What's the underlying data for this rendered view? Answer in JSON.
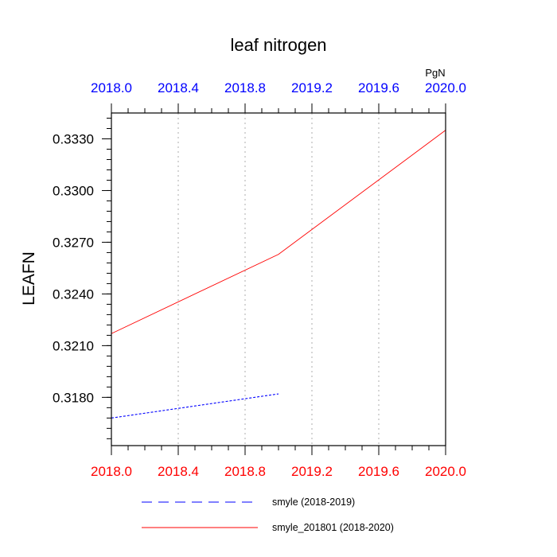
{
  "chart_data": {
    "type": "line",
    "title": "leaf nitrogen",
    "ylabel": "LEAFN",
    "units": "PgN",
    "xlim": [
      2018.0,
      2020.0
    ],
    "ylim": [
      0.3152,
      0.3345
    ],
    "x_ticks": [
      "2018.0",
      "2018.4",
      "2018.8",
      "2019.2",
      "2019.6",
      "2020.0"
    ],
    "y_ticks": [
      "0.3180",
      "0.3210",
      "0.3240",
      "0.3270",
      "0.3300",
      "0.3330"
    ],
    "grid": "vertical dotted",
    "series": [
      {
        "name": "smyle (2018-2019)",
        "color": "#0000ff",
        "style": "dashed",
        "x": [
          2018.0,
          2019.0
        ],
        "y": [
          0.3168,
          0.3182
        ]
      },
      {
        "name": "smyle_201801 (2018-2020)",
        "color": "#ff0000",
        "style": "solid",
        "x": [
          2018.0,
          2019.0,
          2020.0
        ],
        "y": [
          0.3217,
          0.3263,
          0.3335
        ]
      }
    ],
    "colors": {
      "top_axis": "#0000ff",
      "bottom_axis": "#ff0000",
      "grid": "#bbbbbb",
      "frame": "#000000"
    }
  }
}
